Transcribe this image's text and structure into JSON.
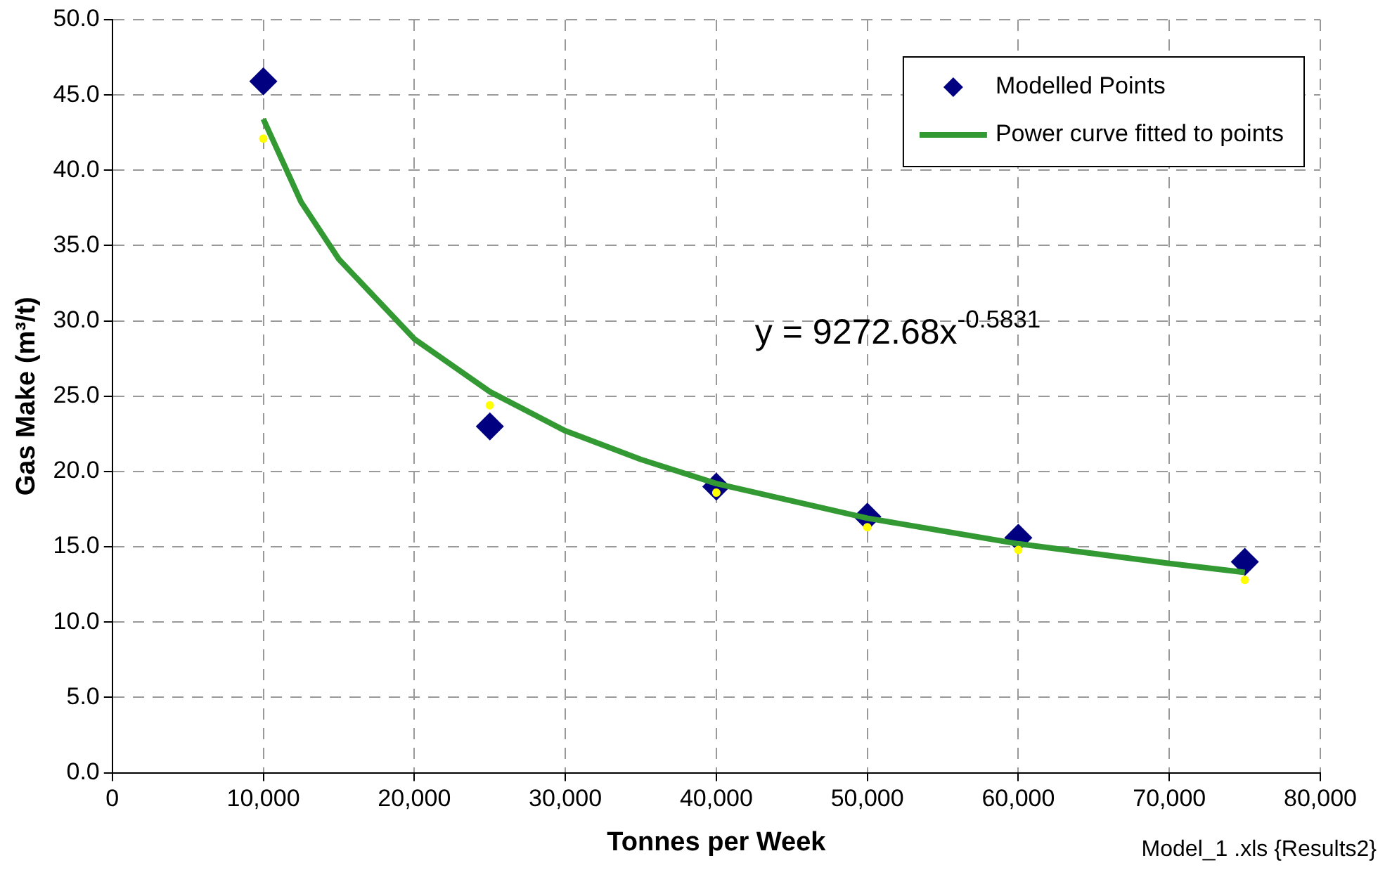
{
  "chart_data": {
    "type": "scatter",
    "xlabel": "Tonnes per Week",
    "ylabel": "Gas Make (m³/t)",
    "xlim": [
      0,
      80000
    ],
    "xticks": [
      {
        "value": 0,
        "label": "0"
      },
      {
        "value": 10000,
        "label": "10,000"
      },
      {
        "value": 20000,
        "label": "20,000"
      },
      {
        "value": 30000,
        "label": "30,000"
      },
      {
        "value": 40000,
        "label": "40,000"
      },
      {
        "value": 50000,
        "label": "50,000"
      },
      {
        "value": 60000,
        "label": "60,000"
      },
      {
        "value": 70000,
        "label": "70,000"
      },
      {
        "value": 80000,
        "label": "80,000"
      }
    ],
    "ylim": [
      0,
      50
    ],
    "yticks": [
      {
        "value": 0,
        "label": "0.0"
      },
      {
        "value": 5,
        "label": "5.0"
      },
      {
        "value": 10,
        "label": "10.0"
      },
      {
        "value": 15,
        "label": "15.0"
      },
      {
        "value": 20,
        "label": "20.0"
      },
      {
        "value": 25,
        "label": "25.0"
      },
      {
        "value": 30,
        "label": "30.0"
      },
      {
        "value": 35,
        "label": "35.0"
      },
      {
        "value": 40,
        "label": "40.0"
      },
      {
        "value": 45,
        "label": "45.0"
      },
      {
        "value": 50,
        "label": "50.0"
      }
    ],
    "grid": true,
    "legend": "top right",
    "series": [
      {
        "name": "Modelled Points",
        "color": "#000080",
        "marker": "diamond",
        "x": [
          10000,
          25000,
          40000,
          50000,
          60000,
          75000
        ],
        "values": [
          45.9,
          23.0,
          19.0,
          17.0,
          15.6,
          14.0
        ]
      },
      {
        "type": "line",
        "name": "Power curve fitted to points",
        "color": "#339933",
        "marker": "none",
        "line_style": "solid",
        "x": [
          10000,
          12500,
          15000,
          20000,
          25000,
          30000,
          35000,
          40000,
          50000,
          60000,
          70000,
          75000
        ],
        "values": [
          43.4,
          37.9,
          34.1,
          28.8,
          25.3,
          22.7,
          20.8,
          19.2,
          16.9,
          15.2,
          13.9,
          13.3
        ]
      },
      {
        "color": "#ffff00",
        "marker": "circle",
        "x": [
          10000,
          25000,
          40000,
          50000,
          60000,
          75000
        ],
        "values": [
          42.1,
          24.4,
          18.6,
          16.3,
          14.8,
          12.8
        ]
      }
    ],
    "annotations": [
      "y = 9272.68x$^{-0.5831}$",
      "Model_1 .xls {Results2}"
    ]
  }
}
